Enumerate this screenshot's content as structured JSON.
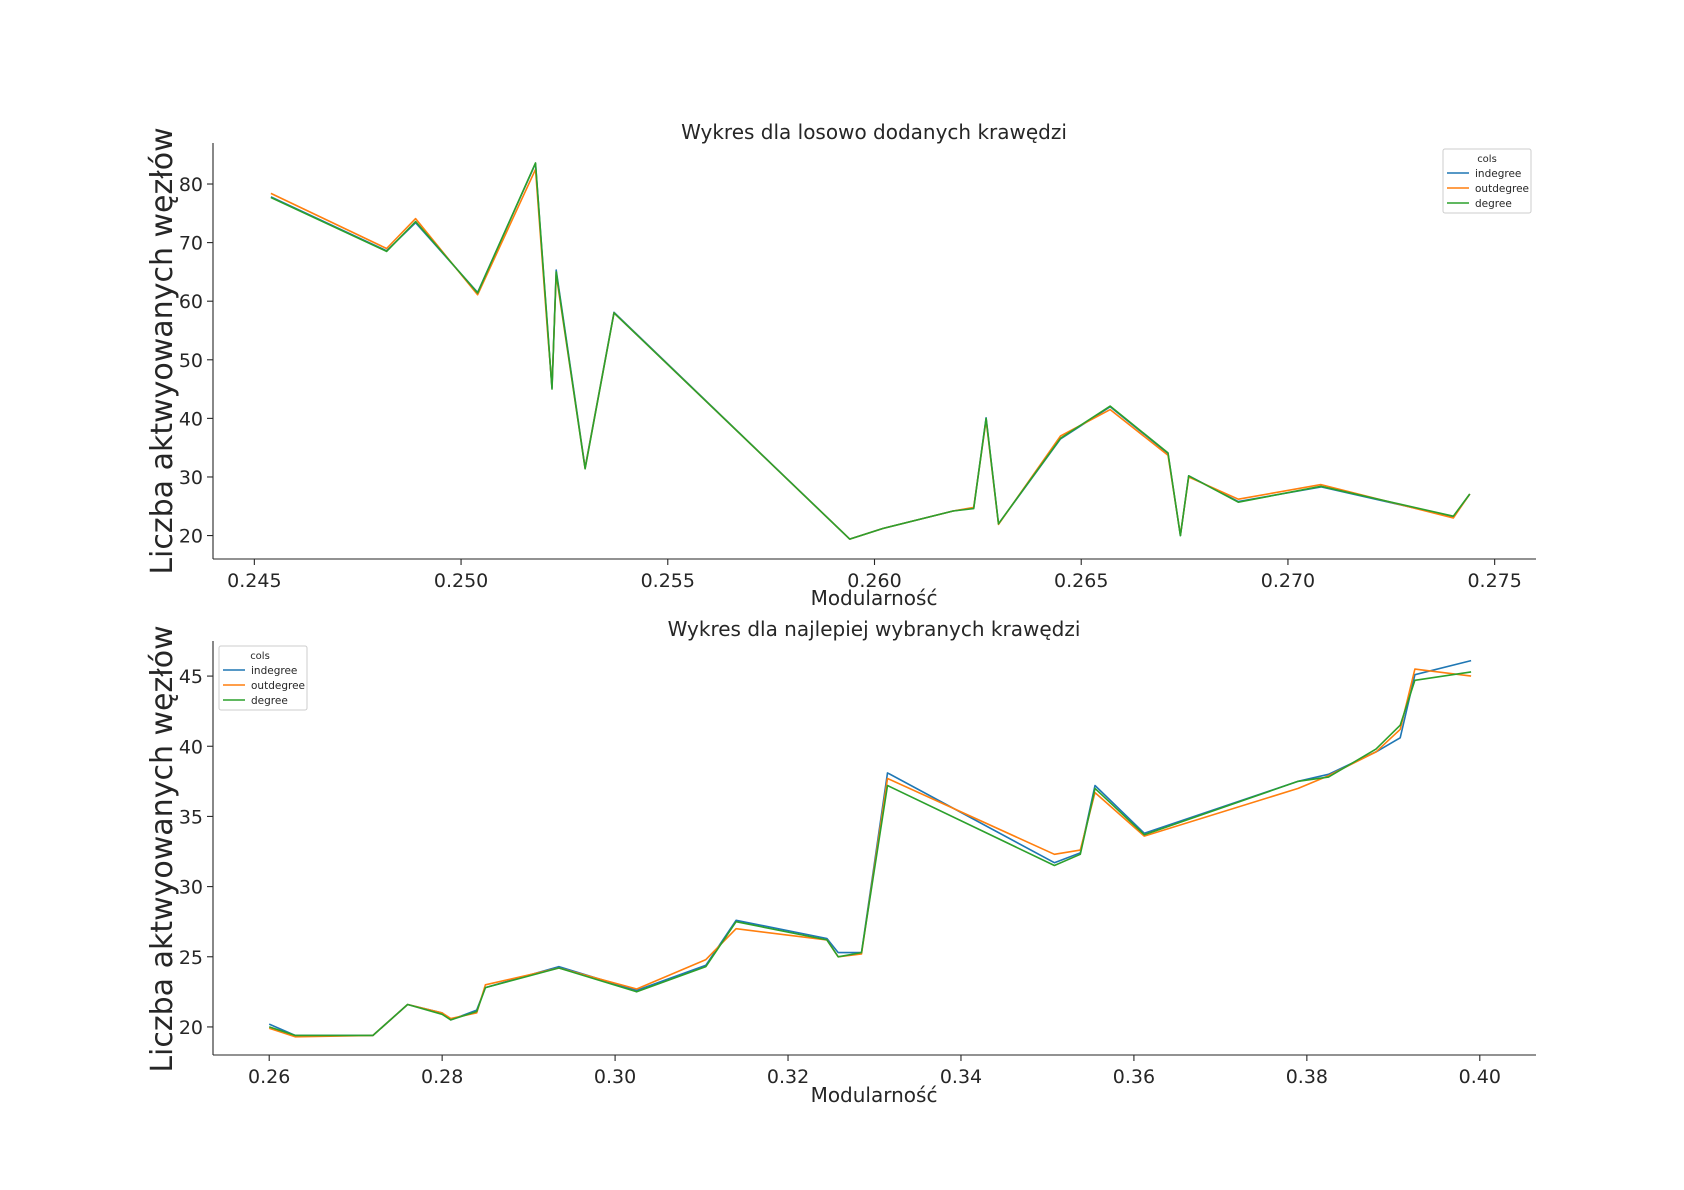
{
  "chart_data": [
    {
      "type": "line",
      "title": "Wykres dla losowo dodanych krawędzi",
      "xlabel": "Modularność",
      "ylabel": "Liczba aktwyowanych węzłów",
      "xlim": [
        0.244,
        0.276
      ],
      "ylim": [
        16,
        87
      ],
      "xticks": [
        "0.245",
        "0.250",
        "0.255",
        "0.260",
        "0.265",
        "0.270",
        "0.275"
      ],
      "xtick_values": [
        0.245,
        0.25,
        0.255,
        0.26,
        0.265,
        0.27,
        0.275
      ],
      "yticks": [
        "20",
        "30",
        "40",
        "50",
        "60",
        "70",
        "80"
      ],
      "ytick_values": [
        20,
        30,
        40,
        50,
        60,
        70,
        80
      ],
      "legend": {
        "title": "cols",
        "position": "top-right"
      },
      "series": [
        {
          "name": "indegree",
          "color": "#1f77b4",
          "x": [
            0.2454,
            0.2482,
            0.2489,
            0.2504,
            0.2518,
            0.2521,
            0.2522,
            0.2523,
            0.253,
            0.2537,
            0.2594,
            0.2602,
            0.2619,
            0.2624,
            0.2627,
            0.263,
            0.2645,
            0.2657,
            0.2671,
            0.2674,
            0.2676,
            0.2688,
            0.2708,
            0.274,
            0.2744
          ],
          "values": [
            77.8,
            68.6,
            73.4,
            61.5,
            83.5,
            54.5,
            45.2,
            65.3,
            31.6,
            58.1,
            19.4,
            21.2,
            24.2,
            24.7,
            40.1,
            22.0,
            36.5,
            42.0,
            34.0,
            20.0,
            30.2,
            25.8,
            28.3,
            23.2,
            27.1
          ]
        },
        {
          "name": "outdegree",
          "color": "#ff7f0e",
          "x": [
            0.2454,
            0.2482,
            0.2489,
            0.2504,
            0.2518,
            0.2521,
            0.2522,
            0.2523,
            0.253,
            0.2537,
            0.2594,
            0.2602,
            0.2619,
            0.2624,
            0.2627,
            0.263,
            0.2645,
            0.2657,
            0.2671,
            0.2674,
            0.2676,
            0.2688,
            0.2708,
            0.274,
            0.2744
          ],
          "values": [
            78.4,
            69.0,
            74.1,
            61.1,
            82.5,
            54.0,
            45.5,
            64.5,
            31.5,
            58.0,
            19.4,
            21.2,
            24.2,
            24.8,
            39.7,
            21.9,
            37.0,
            41.5,
            33.7,
            20.1,
            30.0,
            26.2,
            28.7,
            23.0,
            27.1
          ]
        },
        {
          "name": "degree",
          "color": "#2ca02c",
          "x": [
            0.2454,
            0.2482,
            0.2489,
            0.2504,
            0.2518,
            0.2521,
            0.2522,
            0.2523,
            0.253,
            0.2537,
            0.2594,
            0.2602,
            0.2619,
            0.2624,
            0.2627,
            0.263,
            0.2645,
            0.2657,
            0.2671,
            0.2674,
            0.2676,
            0.2688,
            0.2708,
            0.274,
            0.2744
          ],
          "values": [
            77.7,
            68.5,
            73.6,
            61.4,
            83.6,
            54.8,
            45.0,
            65.0,
            31.4,
            58.0,
            19.4,
            21.2,
            24.2,
            24.6,
            40.0,
            22.0,
            36.6,
            42.1,
            34.1,
            20.0,
            30.2,
            25.7,
            28.4,
            23.3,
            27.1
          ]
        }
      ]
    },
    {
      "type": "line",
      "title": "Wykres dla najlepiej wybranych krawędzi",
      "xlabel": "Modularność",
      "ylabel": "Liczba aktwyowanych węzłów",
      "xlim": [
        0.2535,
        0.4065
      ],
      "ylim": [
        18,
        47.5
      ],
      "xticks": [
        "0.26",
        "0.28",
        "0.30",
        "0.32",
        "0.34",
        "0.36",
        "0.38",
        "0.40"
      ],
      "xtick_values": [
        0.26,
        0.28,
        0.3,
        0.32,
        0.34,
        0.36,
        0.38,
        0.4
      ],
      "yticks": [
        "20",
        "25",
        "30",
        "35",
        "40",
        "45"
      ],
      "ytick_values": [
        20,
        25,
        30,
        35,
        40,
        45
      ],
      "legend": {
        "title": "cols",
        "position": "top-left"
      },
      "series": [
        {
          "name": "indegree",
          "color": "#1f77b4",
          "x": [
            0.26,
            0.263,
            0.272,
            0.276,
            0.28,
            0.281,
            0.284,
            0.285,
            0.2935,
            0.3025,
            0.3105,
            0.314,
            0.3245,
            0.3258,
            0.3285,
            0.3315,
            0.3508,
            0.3538,
            0.3555,
            0.3612,
            0.379,
            0.3825,
            0.388,
            0.3908,
            0.3925,
            0.399
          ],
          "values": [
            20.2,
            19.4,
            19.4,
            21.6,
            21.0,
            20.5,
            21.2,
            22.8,
            24.3,
            22.6,
            24.4,
            27.6,
            26.3,
            25.3,
            25.3,
            38.1,
            31.7,
            32.4,
            37.2,
            33.8,
            37.5,
            38.0,
            39.6,
            40.6,
            45.1,
            46.1
          ]
        },
        {
          "name": "outdegree",
          "color": "#ff7f0e",
          "x": [
            0.26,
            0.263,
            0.272,
            0.276,
            0.28,
            0.281,
            0.284,
            0.285,
            0.2935,
            0.3025,
            0.3105,
            0.314,
            0.3245,
            0.3258,
            0.3285,
            0.3315,
            0.3508,
            0.3538,
            0.3555,
            0.3612,
            0.379,
            0.3825,
            0.388,
            0.3908,
            0.3925,
            0.399
          ],
          "values": [
            19.9,
            19.3,
            19.4,
            21.6,
            21.0,
            20.6,
            21.0,
            23.0,
            24.2,
            22.7,
            24.8,
            27.0,
            26.2,
            25.0,
            25.2,
            37.7,
            32.3,
            32.6,
            36.7,
            33.6,
            37.0,
            37.9,
            39.6,
            41.2,
            45.5,
            45.0
          ]
        },
        {
          "name": "degree",
          "color": "#2ca02c",
          "x": [
            0.26,
            0.263,
            0.272,
            0.276,
            0.28,
            0.281,
            0.284,
            0.285,
            0.2935,
            0.3025,
            0.3105,
            0.314,
            0.3245,
            0.3258,
            0.3285,
            0.3315,
            0.3508,
            0.3538,
            0.3555,
            0.3612,
            0.379,
            0.3825,
            0.388,
            0.3908,
            0.3925,
            0.399
          ],
          "values": [
            20.0,
            19.4,
            19.4,
            21.6,
            20.9,
            20.5,
            21.1,
            22.8,
            24.2,
            22.5,
            24.3,
            27.5,
            26.2,
            25.0,
            25.3,
            37.2,
            31.5,
            32.3,
            37.0,
            33.7,
            37.5,
            37.8,
            39.8,
            41.5,
            44.7,
            45.3
          ]
        }
      ]
    }
  ]
}
